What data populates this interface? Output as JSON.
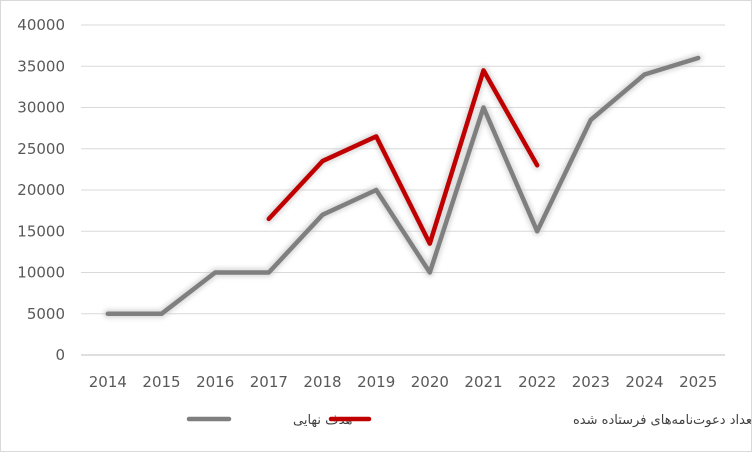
{
  "chart_data": {
    "type": "line",
    "x": [
      "2014",
      "2015",
      "2016",
      "2017",
      "2018",
      "2019",
      "2020",
      "2021",
      "2022",
      "2023",
      "2024",
      "2025"
    ],
    "ylim": [
      0,
      40000
    ],
    "yticks": [
      0,
      5000,
      10000,
      15000,
      20000,
      25000,
      30000,
      35000,
      40000
    ],
    "grid": true,
    "legend_position": "bottom",
    "series": [
      {
        "name": "هدف نهایی",
        "color": "#7f7f7f",
        "values": [
          5000,
          5000,
          10000,
          10000,
          17000,
          20000,
          10000,
          30000,
          15000,
          28500,
          34000,
          36000
        ]
      },
      {
        "name": "تعداد دعوت‌نامه‌های فرستاده شده",
        "color": "#c00000",
        "values": [
          null,
          null,
          null,
          16500,
          23500,
          26500,
          13500,
          34500,
          23000,
          null,
          null,
          null
        ]
      }
    ]
  }
}
